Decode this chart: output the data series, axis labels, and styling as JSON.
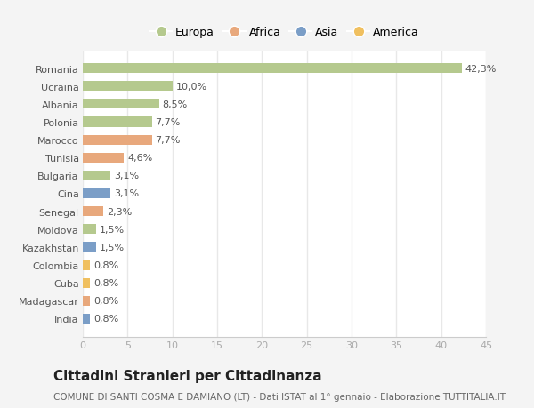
{
  "countries": [
    "Romania",
    "Ucraina",
    "Albania",
    "Polonia",
    "Marocco",
    "Tunisia",
    "Bulgaria",
    "Cina",
    "Senegal",
    "Moldova",
    "Kazakhstan",
    "Colombia",
    "Cuba",
    "Madagascar",
    "India"
  ],
  "values": [
    42.3,
    10.0,
    8.5,
    7.7,
    7.7,
    4.6,
    3.1,
    3.1,
    2.3,
    1.5,
    1.5,
    0.8,
    0.8,
    0.8,
    0.8
  ],
  "labels": [
    "42,3%",
    "10,0%",
    "8,5%",
    "7,7%",
    "7,7%",
    "4,6%",
    "3,1%",
    "3,1%",
    "2,3%",
    "1,5%",
    "1,5%",
    "0,8%",
    "0,8%",
    "0,8%",
    "0,8%"
  ],
  "colors": [
    "#b5c98e",
    "#b5c98e",
    "#b5c98e",
    "#b5c98e",
    "#e8a87c",
    "#e8a87c",
    "#b5c98e",
    "#7b9ec7",
    "#e8a87c",
    "#b5c98e",
    "#7b9ec7",
    "#f0c060",
    "#f0c060",
    "#e8a87c",
    "#7b9ec7"
  ],
  "legend_labels": [
    "Europa",
    "Africa",
    "Asia",
    "America"
  ],
  "legend_colors": [
    "#b5c98e",
    "#e8a87c",
    "#7b9ec7",
    "#f0c060"
  ],
  "title": "Cittadini Stranieri per Cittadinanza",
  "subtitle": "COMUNE DI SANTI COSMA E DAMIANO (LT) - Dati ISTAT al 1° gennaio - Elaborazione TUTTITALIA.IT",
  "xlim": [
    0,
    45
  ],
  "xticks": [
    0,
    5,
    10,
    15,
    20,
    25,
    30,
    35,
    40,
    45
  ],
  "fig_bg": "#f4f4f4",
  "plot_bg": "#ffffff",
  "grid_color": "#e8e8e8",
  "label_fontsize": 8,
  "ytick_fontsize": 8,
  "xtick_fontsize": 8,
  "title_fontsize": 11,
  "subtitle_fontsize": 7.5,
  "bar_height": 0.55
}
